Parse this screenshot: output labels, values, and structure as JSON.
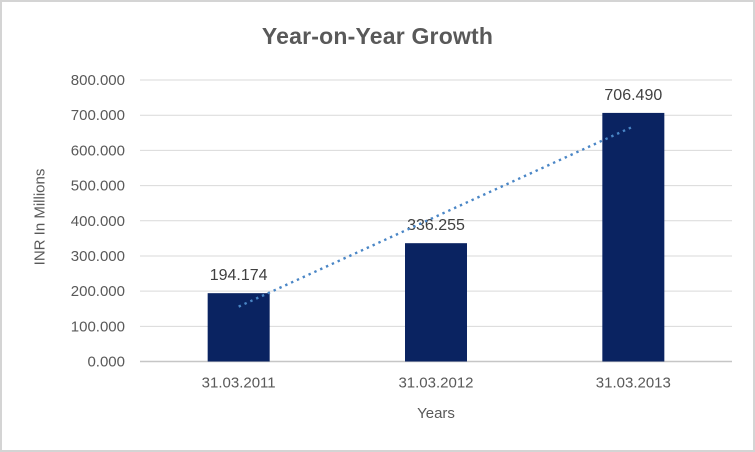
{
  "chart_data": {
    "type": "bar",
    "title": "Year-on-Year Growth",
    "xlabel": "Years",
    "ylabel": "INR In Millions",
    "categories": [
      "31.03.2011",
      "31.03.2012",
      "31.03.2013"
    ],
    "values": [
      194.174,
      336.255,
      706.49
    ],
    "value_decimals": 3,
    "y_ticks": [
      "800.000",
      "700.000",
      "600.000",
      "500.000",
      "400.000",
      "300.000",
      "200.000",
      "100.000",
      "0.000"
    ],
    "ylim": [
      0,
      800
    ],
    "grid": true,
    "legend": "none",
    "trendline": {
      "type": "linear",
      "style": "dotted",
      "start_value": 156,
      "end_value": 668
    },
    "colors": {
      "bar": "#0a2361",
      "trendline": "#4a86c6",
      "gridline": "#d9d9d9",
      "axis_line": "#c6c6c6",
      "title_text": "#595959",
      "axis_text": "#595959",
      "data_label_text": "#404040",
      "border": "#d4d4d4",
      "background": "#ffffff"
    }
  }
}
